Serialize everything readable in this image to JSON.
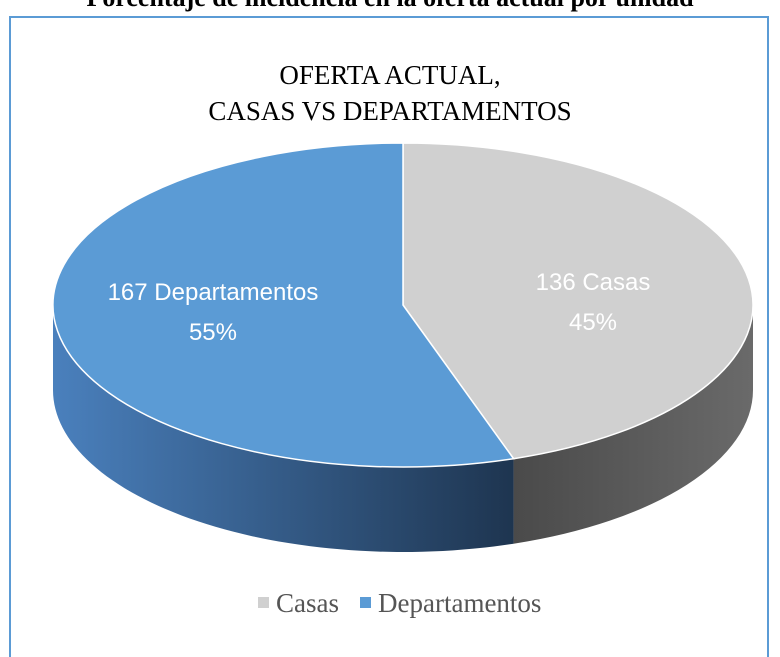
{
  "caption": "Porcentaje de incidencia en la oferta actual por unidad",
  "chart_data": {
    "type": "pie3d",
    "title": [
      "OFERTA ACTUAL,",
      "CASAS VS DEPARTAMENTOS"
    ],
    "categories": [
      "Casas",
      "Departamentos"
    ],
    "values": [
      136,
      167
    ],
    "value_labels": [
      "136 Casas",
      "167 Departamentos"
    ],
    "percentages": [
      45,
      55
    ],
    "percentage_labels": [
      "45%",
      "55%"
    ],
    "colors": [
      "#d0d0d0",
      "#5b9bd5"
    ],
    "side_colors": [
      "#595959",
      "#2e5a86"
    ],
    "legend": "bottom"
  }
}
